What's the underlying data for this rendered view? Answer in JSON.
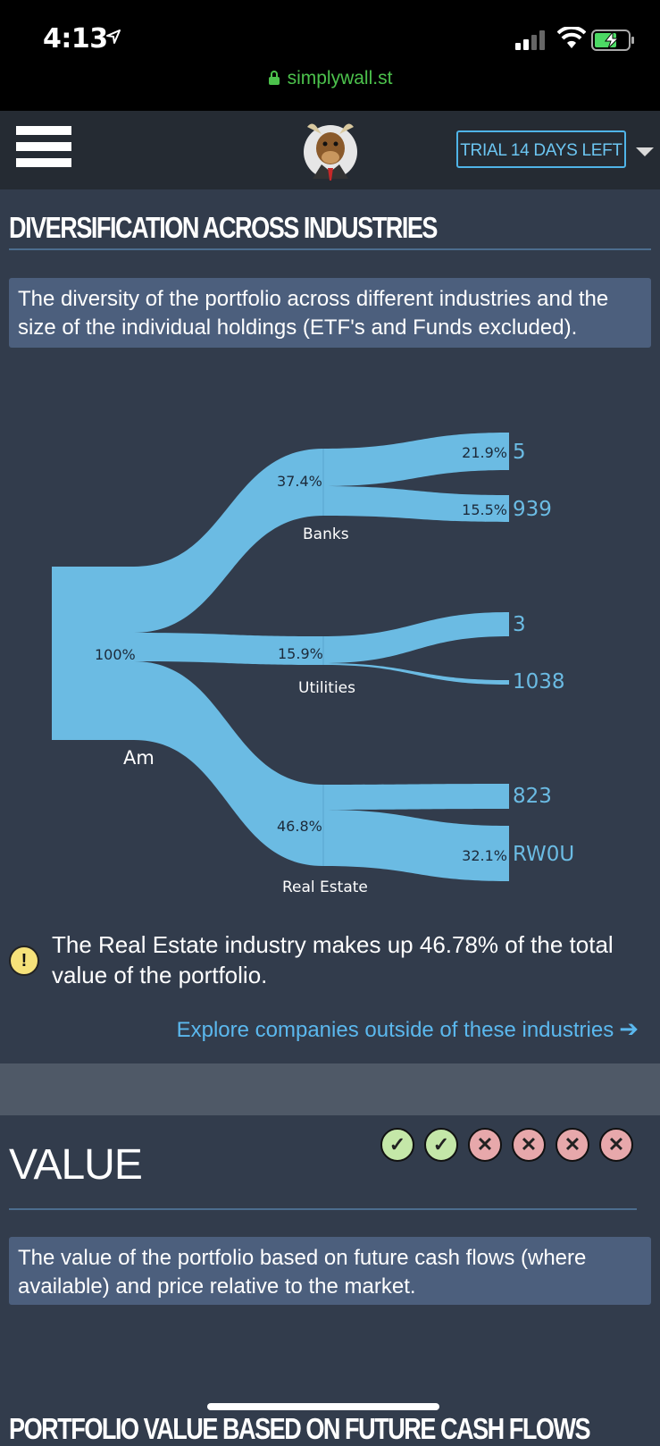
{
  "status_bar": {
    "time": "4:13",
    "url": "simplywall.st"
  },
  "nav": {
    "trial_label": "TRIAL 14 DAYS LEFT"
  },
  "diversification": {
    "title": "DIVERSIFICATION ACROSS INDUSTRIES",
    "description": "The diversity of the portfolio across different industries and the size of the individual holdings (ETF's and Funds excluded).",
    "root": {
      "label": "Am",
      "percent": "100%"
    },
    "industries": [
      {
        "name": "Banks",
        "percent": "37.4%"
      },
      {
        "name": "Utilities",
        "percent": "15.9%"
      },
      {
        "name": "Real Estate",
        "percent": "46.8%"
      }
    ],
    "holdings": [
      {
        "label": "5",
        "percent": "21.9%"
      },
      {
        "label": "939",
        "percent": "15.5%"
      },
      {
        "label": "3",
        "percent": ""
      },
      {
        "label": "1038",
        "percent": ""
      },
      {
        "label": "823",
        "percent": ""
      },
      {
        "label": "RW0U",
        "percent": "32.1%"
      }
    ],
    "alert_text": "The Real Estate industry makes up 46.78% of the total value of the portfolio.",
    "explore_link": "Explore companies outside of these industries"
  },
  "value": {
    "title": "VALUE",
    "checks": [
      "pass",
      "pass",
      "fail",
      "fail",
      "fail",
      "fail"
    ],
    "description": "The value of the portfolio based on future cash flows (where available) and price relative to the market."
  },
  "next_section_title": "PORTFOLIO VALUE BASED ON FUTURE CASH FLOWS",
  "colors": {
    "flow": "#6bbbe3",
    "link": "#5bb8ee",
    "accent": "#4fb4e8"
  }
}
